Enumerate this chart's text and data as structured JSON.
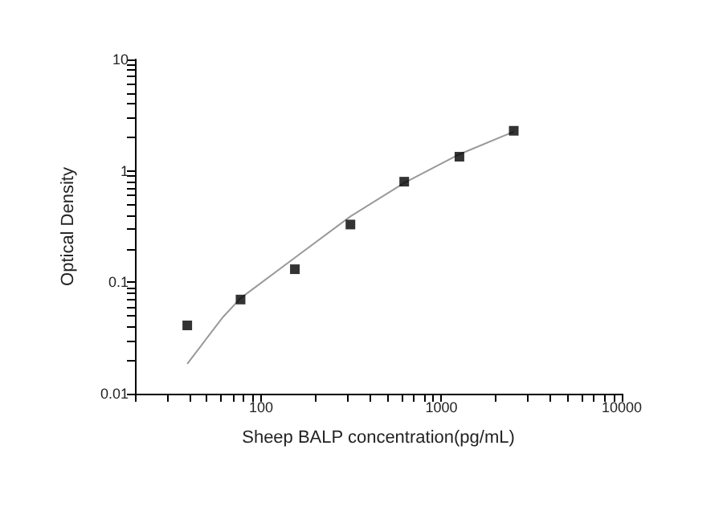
{
  "chart_data": {
    "type": "scatter",
    "xlabel": "Sheep BALP concentration(pg/mL)",
    "ylabel": "Optical Density",
    "log": "xy",
    "grid": false,
    "xlim": [
      20,
      10000
    ],
    "xticks": [
      {
        "value": 20,
        "label": null
      },
      {
        "value": 30,
        "label": null
      },
      {
        "value": 40,
        "label": null
      },
      {
        "value": 50,
        "label": null
      },
      {
        "value": 60,
        "label": null
      },
      {
        "value": 70,
        "label": null
      },
      {
        "value": 80,
        "label": null
      },
      {
        "value": 90,
        "label": null
      },
      100,
      {
        "value": 200,
        "label": null
      },
      {
        "value": 300,
        "label": null
      },
      {
        "value": 400,
        "label": null
      },
      {
        "value": 500,
        "label": null
      },
      {
        "value": 600,
        "label": null
      },
      {
        "value": 700,
        "label": null
      },
      {
        "value": 800,
        "label": null
      },
      {
        "value": 900,
        "label": null
      },
      1000,
      {
        "value": 2000,
        "label": null
      },
      {
        "value": 3000,
        "label": null
      },
      {
        "value": 4000,
        "label": null
      },
      {
        "value": 5000,
        "label": null
      },
      {
        "value": 6000,
        "label": null
      },
      {
        "value": 7000,
        "label": null
      },
      {
        "value": 8000,
        "label": null
      },
      {
        "value": 9000,
        "label": null
      },
      10000
    ],
    "ylim": [
      0.01,
      10
    ],
    "yticks": [
      0.01,
      {
        "value": 0.02,
        "label": null
      },
      {
        "value": 0.03,
        "label": null
      },
      {
        "value": 0.04,
        "label": null
      },
      {
        "value": 0.05,
        "label": null
      },
      {
        "value": 0.06,
        "label": null
      },
      {
        "value": 0.07,
        "label": null
      },
      {
        "value": 0.08,
        "label": null
      },
      {
        "value": 0.09,
        "label": null
      },
      0.1,
      {
        "value": 0.2,
        "label": null
      },
      {
        "value": 0.3,
        "label": null
      },
      {
        "value": 0.4,
        "label": null
      },
      {
        "value": 0.5,
        "label": null
      },
      {
        "value": 0.6,
        "label": null
      },
      {
        "value": 0.7,
        "label": null
      },
      {
        "value": 0.8,
        "label": null
      },
      {
        "value": 0.9,
        "label": null
      },
      1,
      {
        "value": 2,
        "label": null
      },
      {
        "value": 3,
        "label": null
      },
      {
        "value": 4,
        "label": null
      },
      {
        "value": 5,
        "label": null
      },
      {
        "value": 6,
        "label": null
      },
      {
        "value": 7,
        "label": null
      },
      {
        "value": 8,
        "label": null
      },
      {
        "value": 9,
        "label": null
      },
      10
    ],
    "series": [
      {
        "marker": "square",
        "color": "#000000",
        "x": [
          39,
          77,
          154,
          313,
          622,
          1259,
          2518
        ],
        "values": [
          0.041,
          0.07,
          0.131,
          0.33,
          0.8,
          1.34,
          2.29
        ]
      },
      {
        "type": "line",
        "marker": "none",
        "line_style": "solid",
        "color": "#999999",
        "x": [
          39,
          61,
          77,
          154,
          313,
          622,
          1259,
          2518
        ],
        "values": [
          0.0185,
          0.048,
          0.072,
          0.166,
          0.39,
          0.78,
          1.41,
          2.25
        ]
      }
    ]
  }
}
